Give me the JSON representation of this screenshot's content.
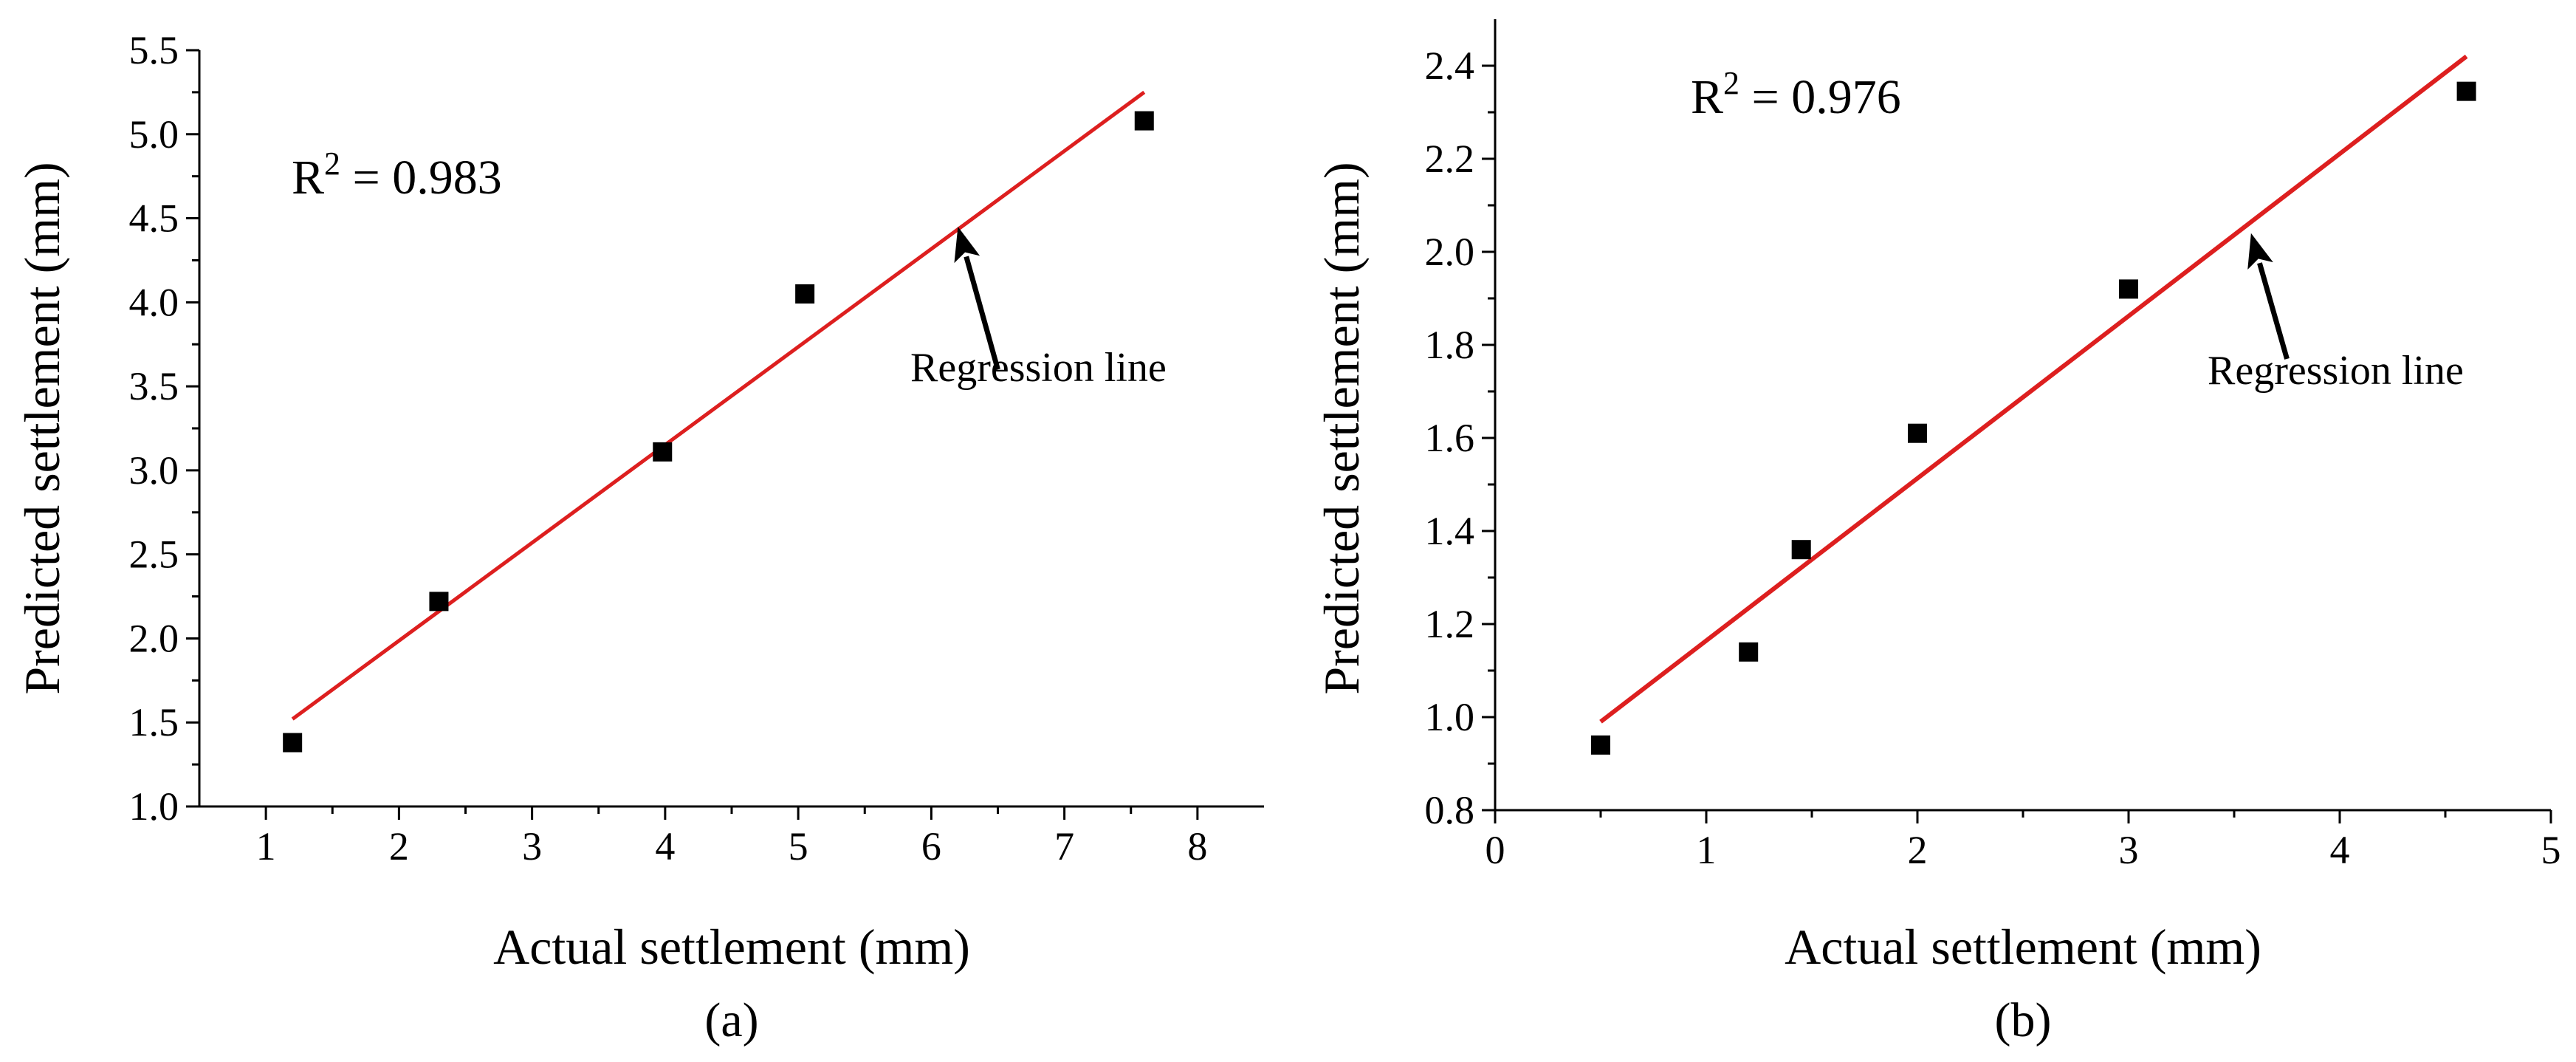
{
  "chart_data": [
    {
      "type": "scatter",
      "panel_label": "(a)",
      "xlabel": "Actual settlement (mm)",
      "ylabel": "Predicted settlement (mm)",
      "xlim": [
        0.5,
        8.5
      ],
      "ylim": [
        1.0,
        5.5
      ],
      "xticks": [
        1,
        2,
        3,
        4,
        5,
        6,
        7,
        8
      ],
      "yticks": [
        1.0,
        1.5,
        2.0,
        2.5,
        3.0,
        3.5,
        4.0,
        4.5,
        5.0,
        5.5
      ],
      "x_tick_decimals": 0,
      "y_tick_decimals": 1,
      "points": {
        "x": [
          1.2,
          2.3,
          3.98,
          5.05,
          7.6
        ],
        "y": [
          1.38,
          2.22,
          3.11,
          4.05,
          5.08
        ]
      },
      "regression": {
        "x0": 1.2,
        "y0": 1.52,
        "x1": 7.6,
        "y1": 5.25,
        "color": "#dd1f1f"
      },
      "r2": {
        "prefix": "R",
        "sup": "2",
        "value_text": " = 0.983"
      },
      "annotation": {
        "text": "Regression line",
        "arrow_from": [
          6.5,
          3.6
        ],
        "arrow_to": [
          6.2,
          4.45
        ]
      },
      "marker_color": "#000000"
    },
    {
      "type": "scatter",
      "panel_label": "(b)",
      "xlabel": "Actual settlement (mm)",
      "ylabel": "Predicted settlement (mm)",
      "xlim": [
        0,
        5
      ],
      "ylim": [
        0.8,
        2.5
      ],
      "xticks": [
        0,
        1,
        2,
        3,
        4,
        5
      ],
      "yticks": [
        0.8,
        1.0,
        1.2,
        1.4,
        1.6,
        1.8,
        2.0,
        2.2,
        2.4
      ],
      "x_tick_decimals": 0,
      "y_tick_decimals": 1,
      "points": {
        "x": [
          0.5,
          1.2,
          1.45,
          2.0,
          3.0,
          4.6
        ],
        "y": [
          0.94,
          1.14,
          1.36,
          1.61,
          1.92,
          2.345
        ]
      },
      "regression": {
        "x0": 0.5,
        "y0": 0.99,
        "x1": 4.6,
        "y1": 2.42,
        "color": "#dd1f1f"
      },
      "r2": {
        "prefix": "R",
        "sup": "2",
        "value_text": " = 0.976"
      },
      "annotation": {
        "text": "Regression line",
        "arrow_from": [
          3.75,
          1.77
        ],
        "arrow_to": [
          3.58,
          2.04
        ]
      },
      "marker_color": "#000000"
    }
  ]
}
